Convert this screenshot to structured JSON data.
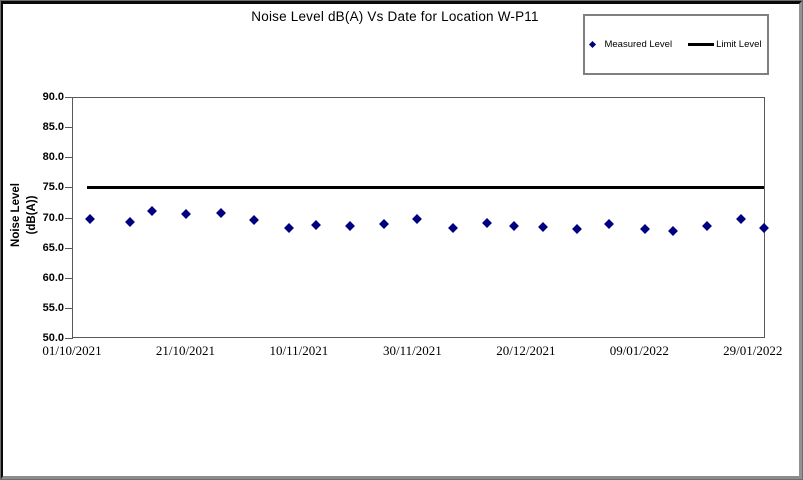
{
  "chart": {
    "title": "Noise Level dB(A) Vs Date for Location W-P11",
    "y_axis_title_line1": "Noise Level",
    "y_axis_title_line2": "(dB(A))",
    "legend": {
      "measured_label": "Measured Level",
      "limit_label": "Limit Level"
    }
  },
  "colors": {
    "measured_marker": "#000080",
    "limit_line": "#000000",
    "axis_line": "#595959",
    "frame_gray": "#8c8c8c"
  },
  "chart_data": {
    "type": "scatter",
    "title": "Noise Level dB(A) Vs Date for Location W-P11",
    "ylabel": "Noise Level (dB(A))",
    "y_range": [
      50.0,
      90.0
    ],
    "y_tick_step": 5.0,
    "y_tick_labels": [
      "90.0",
      "85.0",
      "80.0",
      "75.0",
      "70.0",
      "65.0",
      "60.0",
      "55.0",
      "50.0"
    ],
    "x_tick_labels": [
      "01/10/2021",
      "21/10/2021",
      "10/11/2021",
      "30/11/2021",
      "20/12/2021",
      "09/01/2022",
      "29/01/2022"
    ],
    "x_tick_days": [
      0,
      20,
      40,
      60,
      80,
      100,
      120
    ],
    "x_range_days": [
      0,
      121.8
    ],
    "grid": false,
    "legend_position": "top-right-outside",
    "series": [
      {
        "name": "Measured Level",
        "type": "scatter",
        "marker": "diamond",
        "color": "#000080",
        "points": [
          {
            "day": 3.0,
            "date": "04/10/2021",
            "value": 69.8
          },
          {
            "day": 10.0,
            "date": "11/10/2021",
            "value": 69.3
          },
          {
            "day": 13.9,
            "date": "15/10/2021",
            "value": 71.1
          },
          {
            "day": 19.9,
            "date": "21/10/2021",
            "value": 70.6
          },
          {
            "day": 26.0,
            "date": "27/10/2021",
            "value": 70.7
          },
          {
            "day": 31.9,
            "date": "02/11/2021",
            "value": 69.5
          },
          {
            "day": 38.0,
            "date": "08/11/2021",
            "value": 68.2
          },
          {
            "day": 42.9,
            "date": "13/11/2021",
            "value": 68.8
          },
          {
            "day": 48.8,
            "date": "19/11/2021",
            "value": 68.6
          },
          {
            "day": 54.8,
            "date": "25/11/2021",
            "value": 68.9
          },
          {
            "day": 60.7,
            "date": "01/12/2021",
            "value": 69.8
          },
          {
            "day": 66.9,
            "date": "07/12/2021",
            "value": 68.2
          },
          {
            "day": 72.9,
            "date": "13/12/2021",
            "value": 69.0
          },
          {
            "day": 77.7,
            "date": "18/12/2021",
            "value": 68.6
          },
          {
            "day": 82.8,
            "date": "23/12/2021",
            "value": 68.4
          },
          {
            "day": 88.8,
            "date": "29/12/2021",
            "value": 68.0
          },
          {
            "day": 94.5,
            "date": "03/01/2022",
            "value": 68.9
          },
          {
            "day": 100.8,
            "date": "10/01/2022",
            "value": 68.0
          },
          {
            "day": 105.8,
            "date": "15/01/2022",
            "value": 67.7
          },
          {
            "day": 111.8,
            "date": "21/01/2022",
            "value": 68.5
          },
          {
            "day": 117.7,
            "date": "27/01/2022",
            "value": 69.8
          },
          {
            "day": 121.8,
            "date": "31/01/2022",
            "value": 68.3
          }
        ]
      },
      {
        "name": "Limit Level",
        "type": "line",
        "color": "#000000",
        "value": 75.0,
        "day_start": 2.5,
        "day_end": 121.8
      }
    ]
  }
}
